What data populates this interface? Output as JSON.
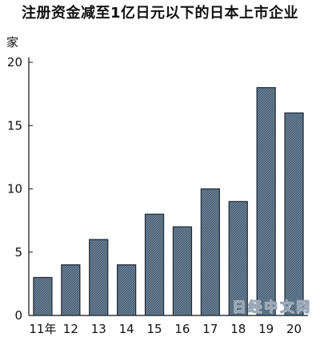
{
  "title": "注册资金减至1亿日元以下的日本上市企业",
  "unit_label": "家",
  "watermark": "日经中文网",
  "colors": {
    "bar_fill": "#5e7488",
    "bar_stroke": "#1c2a38",
    "axis": "#111111"
  },
  "chart_data": {
    "type": "bar",
    "categories": [
      "11年",
      "12",
      "13",
      "14",
      "15",
      "16",
      "17",
      "18",
      "19",
      "20"
    ],
    "values": [
      3,
      4,
      6,
      4,
      8,
      7,
      10,
      9,
      18,
      16
    ],
    "title": "注册资金减至1亿日元以下的日本上市企业",
    "xlabel": "",
    "ylabel": "家",
    "ylim": [
      0,
      20
    ],
    "yticks": [
      0,
      5,
      10,
      15,
      20
    ],
    "grid": false,
    "legend": "none"
  }
}
